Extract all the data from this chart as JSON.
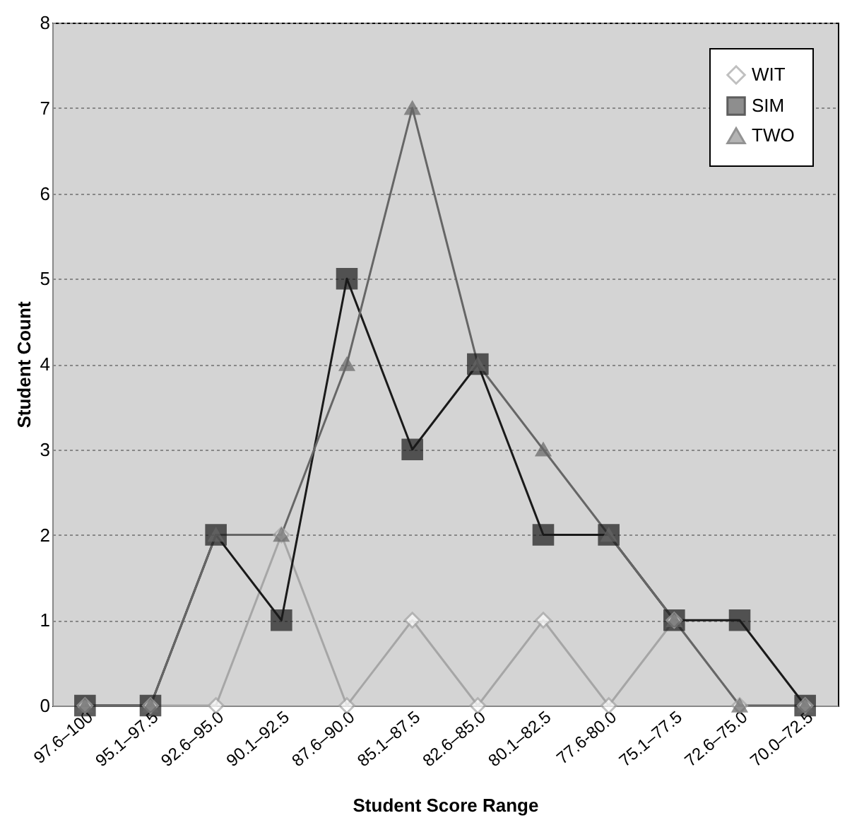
{
  "chart_data": {
    "type": "line",
    "xlabel": "Student Score Range",
    "ylabel": "Student Count",
    "categories": [
      "97.6–100",
      "95.1–97.5",
      "92.6–95.0",
      "90.1–92.5",
      "87.6–90.0",
      "85.1–87.5",
      "82.6–85.0",
      "80.1–82.5",
      "77.6-80.0",
      "75.1–77.5",
      "72.6–75.0",
      "70.0–72.5"
    ],
    "series": [
      {
        "name": "WIT",
        "color": "#a6a6a6",
        "marker": "diamond",
        "values": [
          0,
          0,
          0,
          2,
          0,
          1,
          0,
          1,
          0,
          1,
          0,
          0
        ]
      },
      {
        "name": "SIM",
        "color": "#1a1a1a",
        "marker": "square",
        "values": [
          0,
          0,
          2,
          1,
          5,
          3,
          4,
          2,
          2,
          1,
          1,
          0
        ]
      },
      {
        "name": "TWO",
        "color": "#666666",
        "marker": "triangle",
        "values": [
          0,
          0,
          2,
          2,
          4,
          7,
          4,
          3,
          2,
          1,
          0,
          0
        ]
      }
    ],
    "ylim": [
      0,
      8
    ],
    "yticks": [
      0,
      1,
      2,
      3,
      4,
      5,
      6,
      7,
      8
    ],
    "grid": "y",
    "legend": "top right"
  }
}
